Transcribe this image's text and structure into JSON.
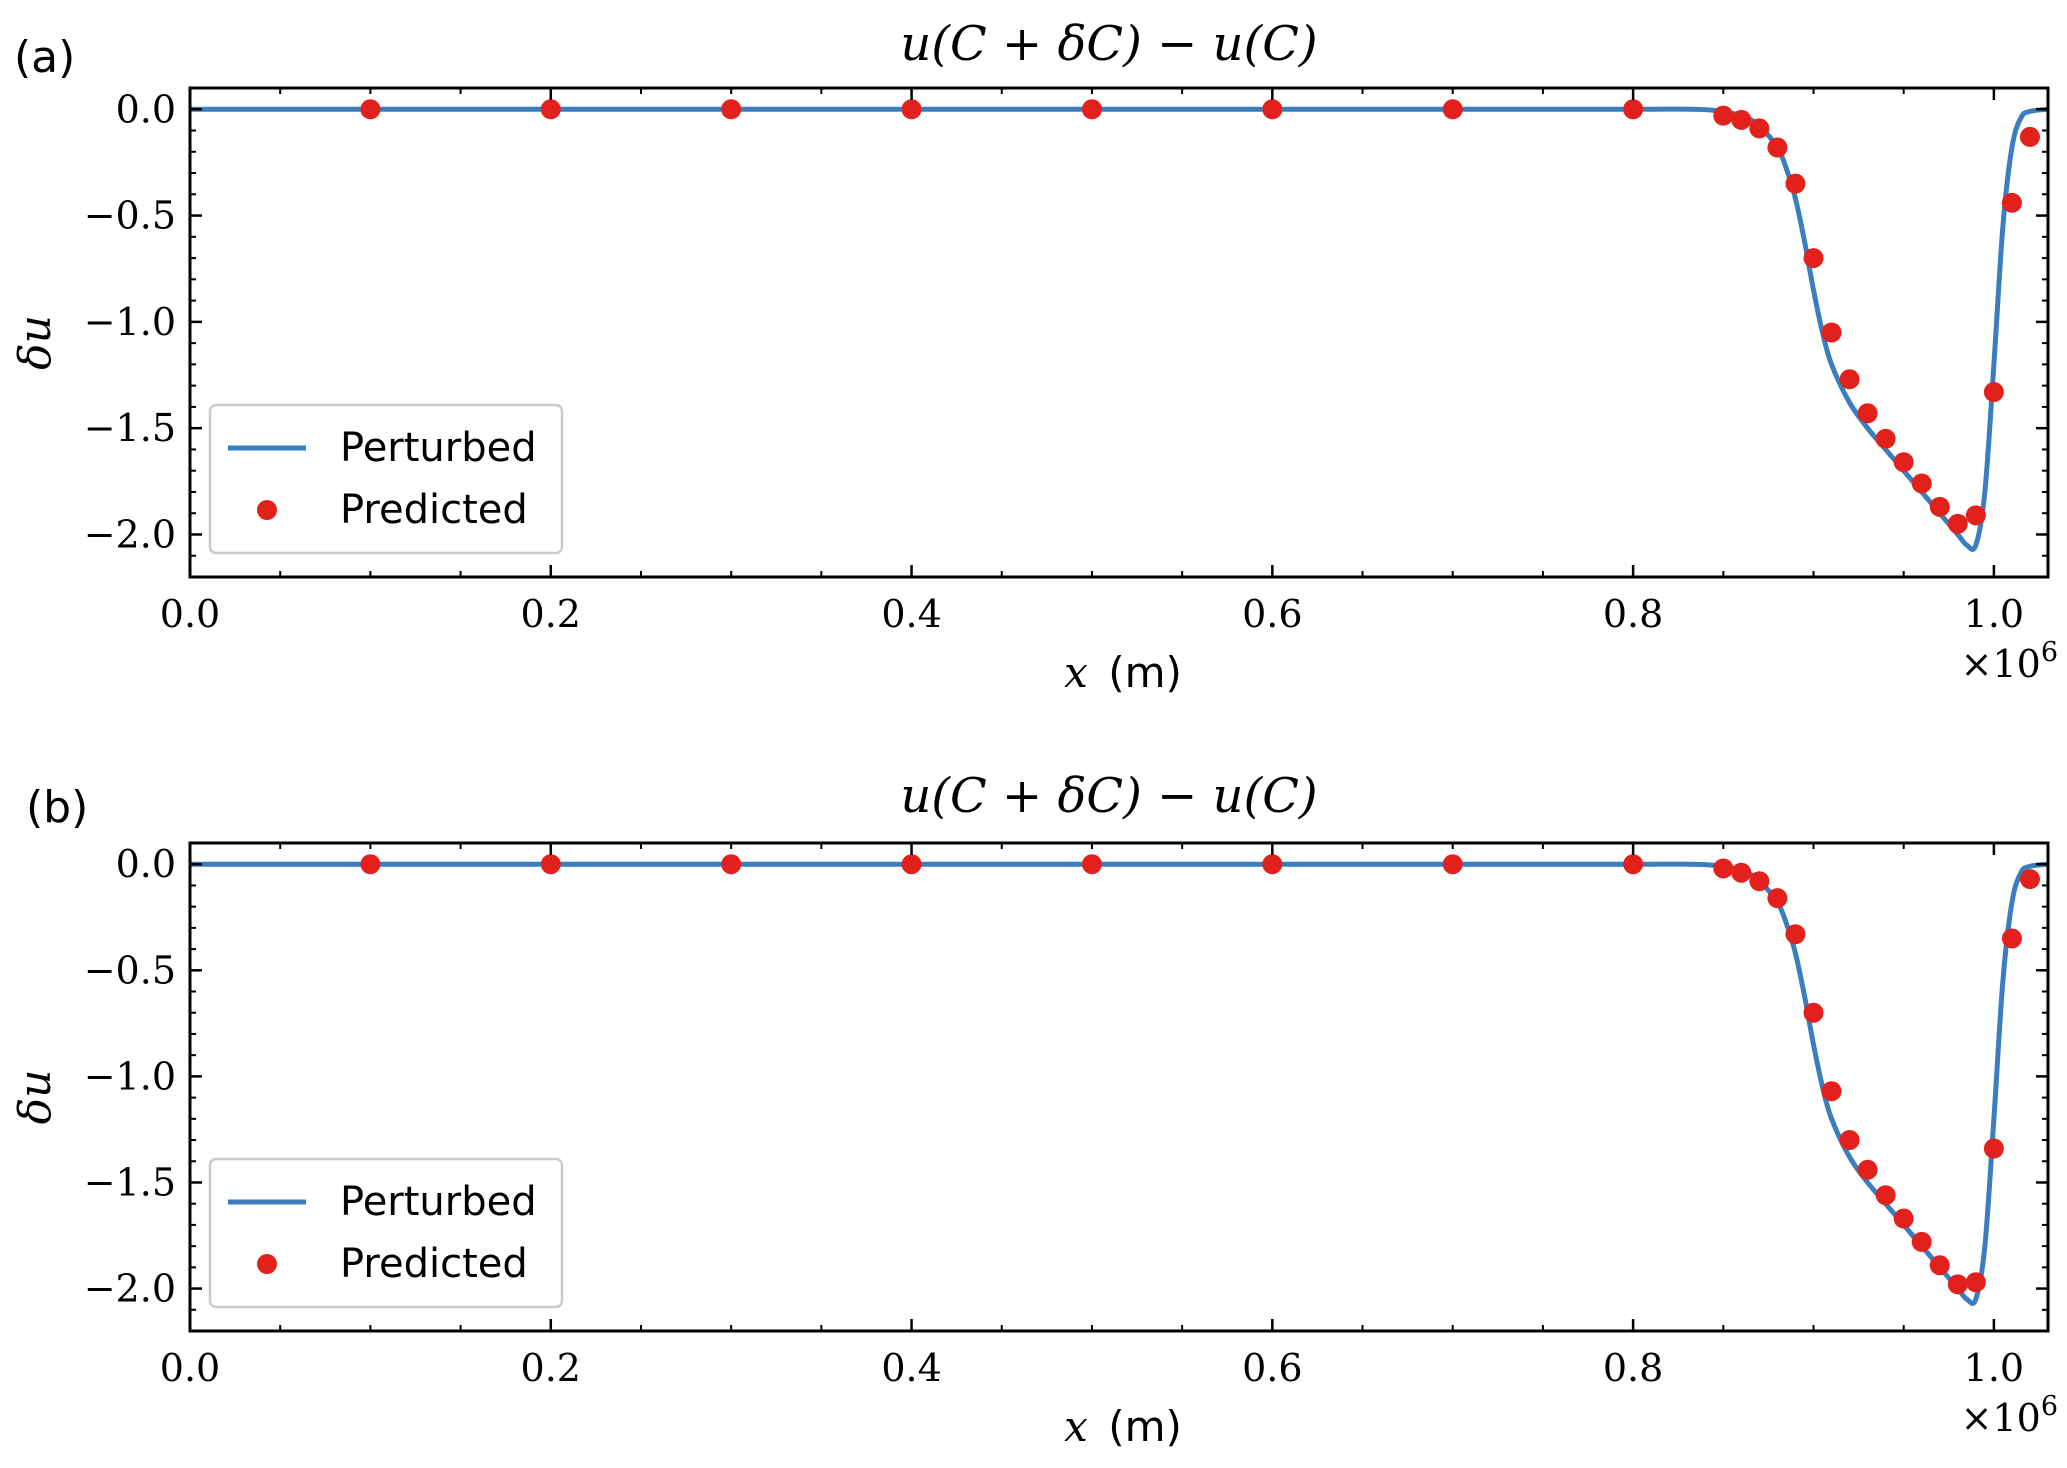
{
  "chart_data": [
    {
      "panel_label": "(a)",
      "type": "line",
      "title": "u(C + δC) − u(C)",
      "xlabel_var": "x",
      "xlabel_unit": "(m)",
      "ylabel": "δu",
      "x_offset_text": "×10",
      "x_offset_exponent": "6",
      "xlim": [
        0.0,
        1.03
      ],
      "ylim": [
        -2.2,
        0.1
      ],
      "xticks": [
        0.0,
        0.2,
        0.4,
        0.6,
        0.8,
        1.0
      ],
      "xtick_labels": [
        "0.0",
        "0.2",
        "0.4",
        "0.6",
        "0.8",
        "1.0"
      ],
      "yticks": [
        0.0,
        -0.5,
        -1.0,
        -1.5,
        -2.0
      ],
      "ytick_labels": [
        "0.0",
        "−0.5",
        "−1.0",
        "−1.5",
        "−2.0"
      ],
      "grid": false,
      "legend_position": "lower-left",
      "colors": {
        "perturbed": "#3a7ebf",
        "predicted": "#e3211c",
        "axes": "#000000"
      },
      "series": [
        {
          "name": "Perturbed",
          "kind": "line",
          "x": [
            0.0,
            0.1,
            0.2,
            0.3,
            0.4,
            0.5,
            0.6,
            0.7,
            0.8,
            0.84,
            0.86,
            0.87,
            0.88,
            0.885,
            0.89,
            0.895,
            0.9,
            0.905,
            0.91,
            0.92,
            0.93,
            0.94,
            0.95,
            0.96,
            0.97,
            0.98,
            0.985,
            0.99,
            0.995,
            1.0,
            1.005,
            1.01,
            1.015,
            1.02,
            1.03
          ],
          "y": [
            0.0,
            0.0,
            0.0,
            0.0,
            0.0,
            0.0,
            0.0,
            0.0,
            0.0,
            -0.002,
            -0.03,
            -0.08,
            -0.18,
            -0.28,
            -0.42,
            -0.62,
            -0.85,
            -1.05,
            -1.2,
            -1.38,
            -1.5,
            -1.6,
            -1.7,
            -1.8,
            -1.9,
            -2.0,
            -2.05,
            -2.05,
            -1.8,
            -1.2,
            -0.55,
            -0.18,
            -0.04,
            -0.01,
            0.0
          ]
        },
        {
          "name": "Predicted",
          "kind": "scatter",
          "x": [
            0.1,
            0.2,
            0.3,
            0.4,
            0.5,
            0.6,
            0.7,
            0.8,
            0.85,
            0.86,
            0.87,
            0.88,
            0.89,
            0.9,
            0.91,
            0.92,
            0.93,
            0.94,
            0.95,
            0.96,
            0.97,
            0.98,
            0.99,
            1.0,
            1.01,
            1.02
          ],
          "y": [
            0.0,
            0.0,
            0.0,
            0.0,
            0.0,
            0.0,
            0.0,
            0.0,
            -0.03,
            -0.05,
            -0.09,
            -0.18,
            -0.35,
            -0.7,
            -1.05,
            -1.27,
            -1.43,
            -1.55,
            -1.66,
            -1.76,
            -1.87,
            -1.95,
            -1.91,
            -1.33,
            -0.44,
            -0.13
          ]
        }
      ]
    },
    {
      "panel_label": "(b)",
      "type": "line",
      "title": "u(C + δC) − u(C)",
      "xlabel_var": "x",
      "xlabel_unit": "(m)",
      "ylabel": "δu",
      "x_offset_text": "×10",
      "x_offset_exponent": "6",
      "xlim": [
        0.0,
        1.03
      ],
      "ylim": [
        -2.2,
        0.1
      ],
      "xticks": [
        0.0,
        0.2,
        0.4,
        0.6,
        0.8,
        1.0
      ],
      "xtick_labels": [
        "0.0",
        "0.2",
        "0.4",
        "0.6",
        "0.8",
        "1.0"
      ],
      "yticks": [
        0.0,
        -0.5,
        -1.0,
        -1.5,
        -2.0
      ],
      "ytick_labels": [
        "0.0",
        "−0.5",
        "−1.0",
        "−1.5",
        "−2.0"
      ],
      "grid": false,
      "legend_position": "lower-left",
      "colors": {
        "perturbed": "#3a7ebf",
        "predicted": "#e3211c",
        "axes": "#000000"
      },
      "series": [
        {
          "name": "Perturbed",
          "kind": "line",
          "x": [
            0.0,
            0.1,
            0.2,
            0.3,
            0.4,
            0.5,
            0.6,
            0.7,
            0.8,
            0.84,
            0.86,
            0.87,
            0.88,
            0.885,
            0.89,
            0.895,
            0.9,
            0.905,
            0.91,
            0.92,
            0.93,
            0.94,
            0.95,
            0.96,
            0.97,
            0.98,
            0.985,
            0.99,
            0.995,
            1.0,
            1.005,
            1.01,
            1.015,
            1.02,
            1.03
          ],
          "y": [
            0.0,
            0.0,
            0.0,
            0.0,
            0.0,
            0.0,
            0.0,
            0.0,
            0.0,
            -0.002,
            -0.03,
            -0.08,
            -0.18,
            -0.28,
            -0.42,
            -0.62,
            -0.85,
            -1.05,
            -1.2,
            -1.38,
            -1.5,
            -1.6,
            -1.7,
            -1.8,
            -1.9,
            -2.0,
            -2.05,
            -2.05,
            -1.8,
            -1.2,
            -0.55,
            -0.18,
            -0.04,
            -0.01,
            0.0
          ]
        },
        {
          "name": "Predicted",
          "kind": "scatter",
          "x": [
            0.1,
            0.2,
            0.3,
            0.4,
            0.5,
            0.6,
            0.7,
            0.8,
            0.85,
            0.86,
            0.87,
            0.88,
            0.89,
            0.9,
            0.91,
            0.92,
            0.93,
            0.94,
            0.95,
            0.96,
            0.97,
            0.98,
            0.99,
            1.0,
            1.01,
            1.02
          ],
          "y": [
            0.0,
            0.0,
            0.0,
            0.0,
            0.0,
            0.0,
            0.0,
            0.0,
            -0.02,
            -0.04,
            -0.08,
            -0.16,
            -0.33,
            -0.7,
            -1.07,
            -1.3,
            -1.44,
            -1.56,
            -1.67,
            -1.78,
            -1.89,
            -1.98,
            -1.97,
            -1.34,
            -0.35,
            -0.07
          ]
        }
      ]
    }
  ]
}
